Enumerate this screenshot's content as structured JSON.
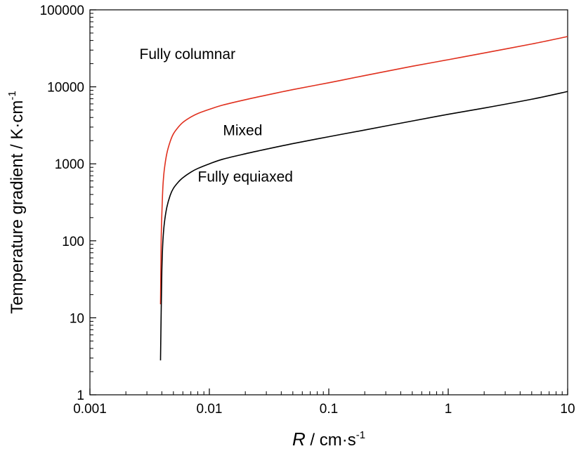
{
  "chart_data": {
    "type": "line",
    "xscale": "log",
    "yscale": "log",
    "xlim": [
      0.001,
      10
    ],
    "ylim": [
      1,
      100000
    ],
    "x_ticks": [
      0.001,
      0.01,
      0.1,
      1,
      10
    ],
    "x_tick_labels": [
      "0.001",
      "0.01",
      "0.1",
      "1",
      "10"
    ],
    "y_ticks": [
      1,
      10,
      100,
      1000,
      10000,
      100000
    ],
    "y_tick_labels": [
      "1",
      "10",
      "100",
      "1000",
      "10000",
      "100000"
    ],
    "xlabel": {
      "symbol": "R",
      "unit_main": " / cm·s",
      "unit_sup": "-1"
    },
    "ylabel": {
      "main": "Temperature gradient / K·cm",
      "sup": "-1"
    },
    "grid": false,
    "series": [
      {
        "name": "upper-boundary",
        "color": "#e0301e",
        "x": [
          0.0039,
          0.00395,
          0.004,
          0.00405,
          0.0041,
          0.0042,
          0.0044,
          0.0047,
          0.005,
          0.0055,
          0.006,
          0.007,
          0.008,
          0.01,
          0.013,
          0.02,
          0.03,
          0.05,
          0.1,
          0.2,
          0.5,
          1,
          2,
          5,
          10
        ],
        "y": [
          15,
          100,
          220,
          380,
          560,
          850,
          1350,
          1950,
          2450,
          3000,
          3450,
          4050,
          4500,
          5100,
          5800,
          6800,
          7800,
          9200,
          11300,
          14000,
          18500,
          22500,
          27500,
          36000,
          45000
        ]
      },
      {
        "name": "lower-boundary",
        "color": "#000000",
        "x": [
          0.0039,
          0.00395,
          0.004,
          0.00405,
          0.0041,
          0.0042,
          0.0044,
          0.0047,
          0.005,
          0.0055,
          0.006,
          0.007,
          0.008,
          0.01,
          0.013,
          0.02,
          0.03,
          0.05,
          0.1,
          0.2,
          0.5,
          1,
          2,
          5,
          10
        ],
        "y": [
          2.8,
          12,
          40,
          75,
          110,
          170,
          270,
          390,
          480,
          580,
          660,
          780,
          870,
          1000,
          1150,
          1350,
          1550,
          1830,
          2250,
          2750,
          3600,
          4400,
          5300,
          6900,
          8700
        ]
      }
    ],
    "annotations": [
      {
        "text": "Fully columnar",
        "x": 0.0026,
        "y": 23000
      },
      {
        "text": "Mixed",
        "x": 0.013,
        "y": 2350
      },
      {
        "text": "Fully equiaxed",
        "x": 0.008,
        "y": 590
      }
    ]
  }
}
